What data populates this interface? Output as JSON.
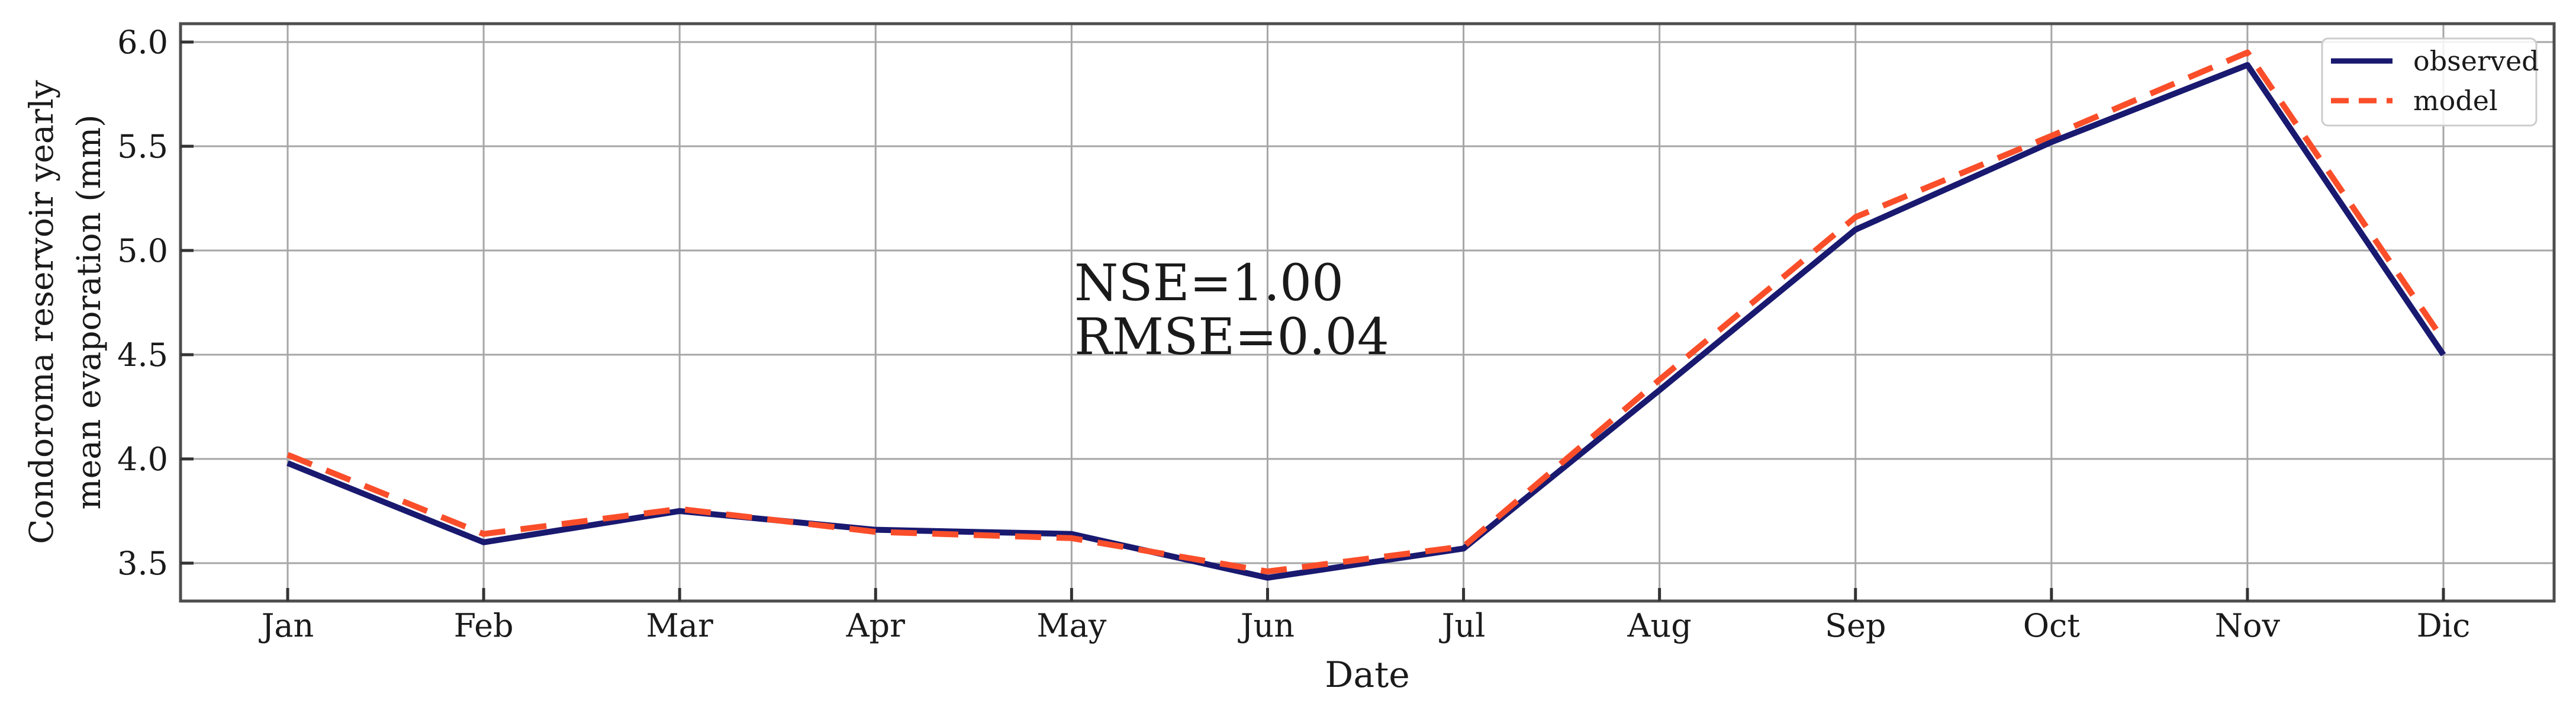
{
  "chart_data": {
    "type": "line",
    "title": "",
    "xlabel": "Date",
    "ylabel": "Condoroma reservoir yearly mean evaporation (mm)",
    "ylabel_lines": [
      "Condoroma reservoir yearly",
      "mean evaporation (mm)"
    ],
    "categories": [
      "Jan",
      "Feb",
      "Mar",
      "Apr",
      "May",
      "Jun",
      "Jul",
      "Aug",
      "Sep",
      "Oct",
      "Nov",
      "Dic"
    ],
    "series": [
      {
        "name": "observed",
        "style": "solid",
        "color": "#191970",
        "values": [
          3.98,
          3.6,
          3.75,
          3.66,
          3.64,
          3.43,
          3.57,
          4.33,
          5.1,
          5.52,
          5.89,
          4.5
        ]
      },
      {
        "name": "model",
        "style": "dashed",
        "color": "#FA4E2A",
        "values": [
          4.02,
          3.64,
          3.76,
          3.65,
          3.62,
          3.46,
          3.58,
          4.38,
          5.16,
          5.55,
          5.95,
          4.57
        ]
      }
    ],
    "yticks": [
      3.5,
      4.0,
      4.5,
      5.0,
      5.5,
      6.0
    ],
    "ytick_labels": [
      "3.5",
      "4.0",
      "4.5",
      "5.0",
      "5.5",
      "6.0"
    ],
    "ylim": [
      3.3,
      6.1
    ],
    "grid": true,
    "legend_position": "upper right",
    "annotation": {
      "line1": "NSE=1.00",
      "line2": "RMSE=0.04"
    }
  },
  "colors": {
    "background": "#ffffff",
    "grid": "#a6a6a6",
    "spine": "#4d4d4d",
    "tick": "#333333",
    "text": "#1a1a1a",
    "legend_border": "#cccccc",
    "legend_background": "#ffffff"
  }
}
